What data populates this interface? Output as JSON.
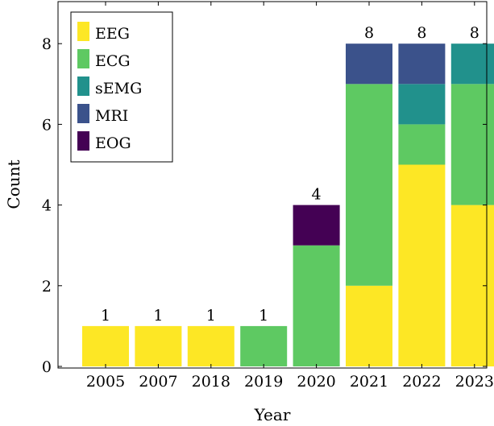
{
  "chart_data": {
    "type": "bar",
    "stacked": true,
    "categories": [
      "2005",
      "2007",
      "2018",
      "2019",
      "2020",
      "2021",
      "2022",
      "2023"
    ],
    "series": [
      {
        "name": "EEG",
        "color": "#fde725",
        "values": [
          1,
          1,
          1,
          0,
          0,
          2,
          5,
          4
        ]
      },
      {
        "name": "ECG",
        "color": "#5ec962",
        "values": [
          0,
          0,
          0,
          1,
          3,
          5,
          1,
          3
        ]
      },
      {
        "name": "sEMG",
        "color": "#21918c",
        "values": [
          0,
          0,
          0,
          0,
          0,
          0,
          1,
          1
        ]
      },
      {
        "name": "MRI",
        "color": "#3b528b",
        "values": [
          0,
          0,
          0,
          0,
          0,
          1,
          1,
          0
        ]
      },
      {
        "name": "EOG",
        "color": "#440154",
        "values": [
          0,
          0,
          0,
          0,
          1,
          0,
          0,
          0
        ]
      }
    ],
    "totals": [
      "1",
      "1",
      "1",
      "1",
      "4",
      "8",
      "8",
      "8"
    ],
    "xlabel": "Year",
    "ylabel": "Count",
    "ylim": [
      0,
      9
    ],
    "yticks": [
      "0",
      "2",
      "4",
      "6",
      "8"
    ],
    "legend_position": "top-left",
    "grid": false
  }
}
